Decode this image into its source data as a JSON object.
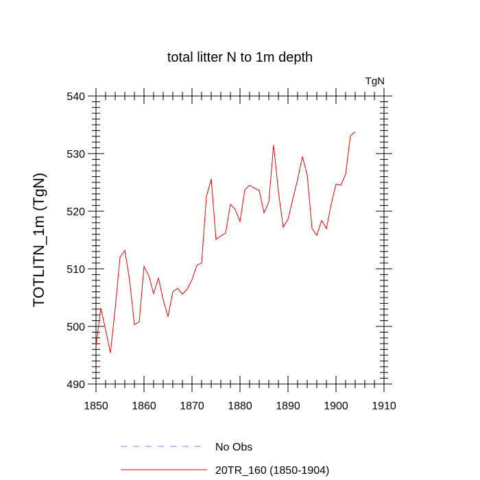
{
  "chart_data": {
    "type": "line",
    "title": "total litter N to 1m depth",
    "units_label": "TgN",
    "xlabel": "",
    "ylabel": "TOTLITN_1m  (TgN)",
    "xlim": [
      1850,
      1910
    ],
    "ylim": [
      490,
      540
    ],
    "x_ticks": [
      1850,
      1860,
      1870,
      1880,
      1890,
      1900,
      1910
    ],
    "y_ticks": [
      490,
      500,
      510,
      520,
      530,
      540
    ],
    "x_tick_labels": [
      "1850",
      "1860",
      "1870",
      "1880",
      "1890",
      "1900",
      "1910"
    ],
    "y_tick_labels": [
      "490",
      "500",
      "510",
      "520",
      "530",
      "540"
    ],
    "x_minor_step": 2,
    "y_minor_step": 1,
    "grid": false,
    "series": [
      {
        "name": "No Obs",
        "style": "dashed",
        "color": "#8080ff",
        "x": [],
        "values": []
      },
      {
        "name": "20TR_160 (1850-1904)",
        "style": "solid",
        "color": "#e00000",
        "x": [
          1850,
          1851,
          1852,
          1853,
          1854,
          1855,
          1856,
          1857,
          1858,
          1859,
          1860,
          1861,
          1862,
          1863,
          1864,
          1865,
          1866,
          1867,
          1868,
          1869,
          1870,
          1871,
          1872,
          1873,
          1874,
          1875,
          1876,
          1877,
          1878,
          1879,
          1880,
          1881,
          1882,
          1883,
          1884,
          1885,
          1886,
          1887,
          1888,
          1889,
          1890,
          1891,
          1892,
          1893,
          1894,
          1895,
          1896,
          1897,
          1898,
          1899,
          1900,
          1901,
          1902,
          1903,
          1904
        ],
        "values": [
          496.5,
          503.2,
          499.4,
          495.4,
          503.1,
          512.0,
          513.2,
          508.0,
          500.3,
          500.8,
          510.4,
          508.8,
          505.7,
          508.4,
          504.6,
          501.7,
          506.0,
          506.6,
          505.6,
          506.5,
          508.1,
          510.6,
          511.0,
          522.5,
          525.6,
          515.1,
          515.7,
          516.2,
          521.2,
          520.3,
          518.2,
          523.7,
          524.5,
          524.0,
          523.6,
          519.7,
          521.6,
          531.5,
          523.4,
          517.2,
          518.6,
          522.1,
          525.5,
          529.5,
          526.3,
          517.0,
          515.8,
          518.4,
          517.0,
          521.2,
          524.7,
          524.5,
          526.4,
          533.1,
          533.8
        ]
      }
    ],
    "legend_position": "bottom"
  }
}
